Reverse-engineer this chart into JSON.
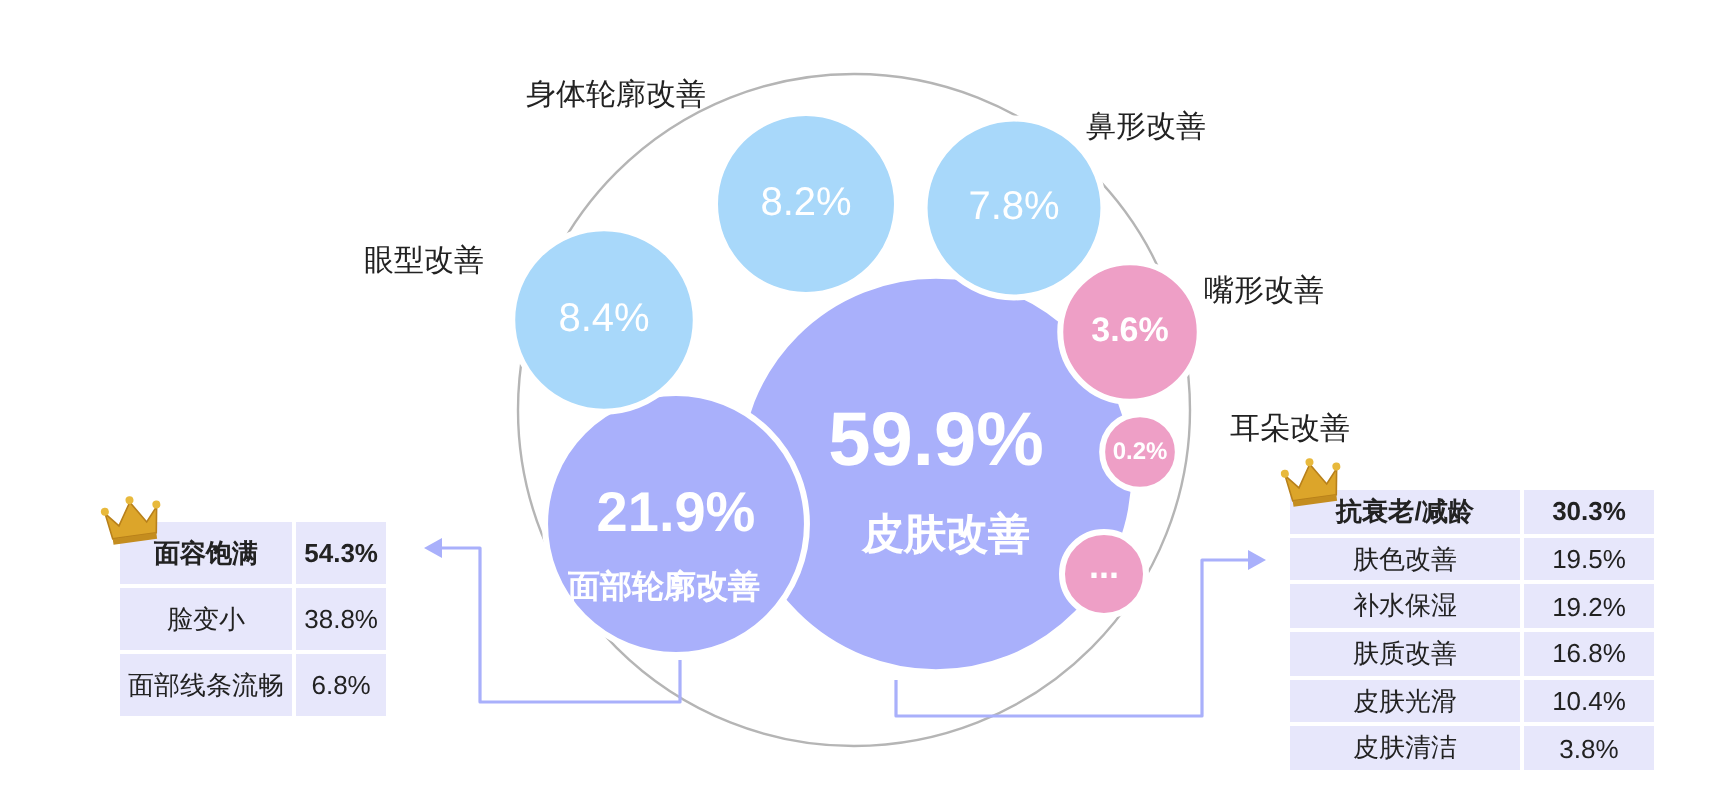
{
  "chart_data": [
    {
      "type": "other",
      "categories": [
        "皮肤改善",
        "面部轮廓改善",
        "眼型改善",
        "身体轮廓改善",
        "鼻形改善",
        "嘴形改善",
        "耳朵改善",
        null
      ],
      "values": [
        59.9,
        21.9,
        8.4,
        8.2,
        7.8,
        3.6,
        0.2,
        null
      ],
      "value_labels": [
        "59.9%",
        "21.9%",
        "8.4%",
        "8.2%",
        "7.8%",
        "3.6%",
        "0.2%",
        "..."
      ],
      "colors": [
        "#a9b0fb",
        "#a9b0fb",
        "#a8d8fa",
        "#a8d8fa",
        "#a8d8fa",
        "#ee9fc6",
        "#ee9fc6",
        "#ee9fc6"
      ]
    },
    {
      "type": "other",
      "categories": [
        "面容饱满",
        "脸变小",
        "面部线条流畅"
      ],
      "values": [
        54.3,
        38.8,
        6.8
      ],
      "value_labels": [
        "54.3%",
        "38.8%",
        "6.8%"
      ]
    },
    {
      "type": "other",
      "categories": [
        "抗衰老/减龄",
        "肤色改善",
        "补水保湿",
        "肤质改善",
        "皮肤光滑",
        "皮肤清洁"
      ],
      "values": [
        30.3,
        19.5,
        19.2,
        16.8,
        10.4,
        3.8
      ],
      "value_labels": [
        "30.3%",
        "19.5%",
        "19.2%",
        "16.8%",
        "10.4%",
        "3.8%"
      ]
    }
  ]
}
